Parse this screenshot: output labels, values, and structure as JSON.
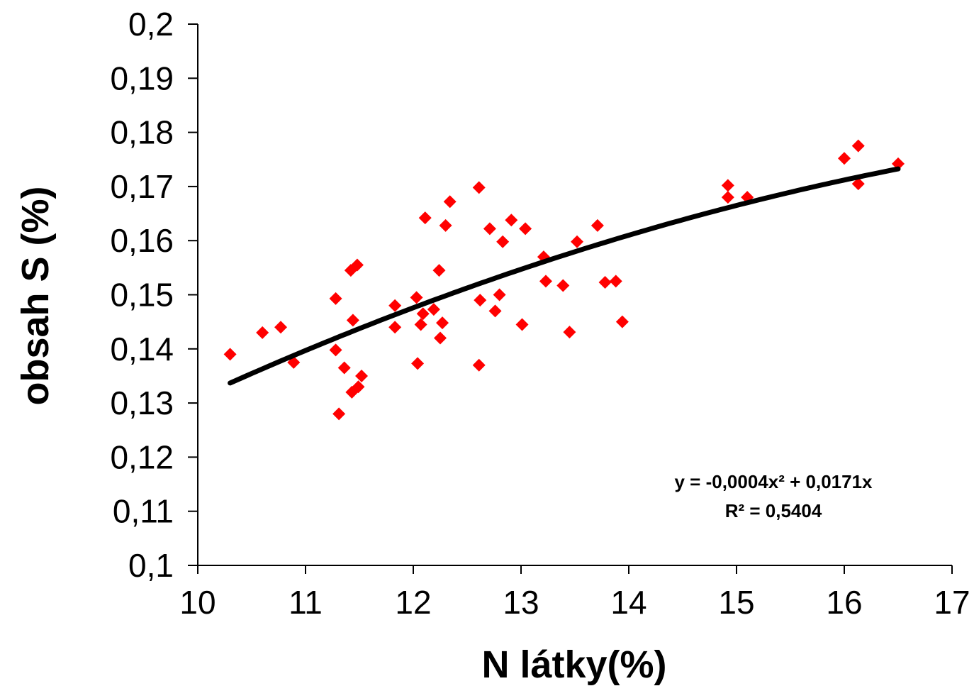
{
  "chart_data": {
    "type": "scatter",
    "xlabel": "N látky(%)",
    "ylabel": "obsah S (%)",
    "xlim": [
      10,
      17
    ],
    "ylim": [
      0.1,
      0.2
    ],
    "x_ticks": [
      "10",
      "11",
      "12",
      "13",
      "14",
      "15",
      "16",
      "17"
    ],
    "y_ticks": [
      "0,1",
      "0,11",
      "0,12",
      "0,13",
      "0,14",
      "0,15",
      "0,16",
      "0,17",
      "0,18",
      "0,19",
      "0,2"
    ],
    "grid": false,
    "legend": "none",
    "series": [
      {
        "marker": "diamond",
        "color": "#ff0000",
        "points": [
          [
            10.3,
            0.139
          ],
          [
            10.6,
            0.143
          ],
          [
            10.77,
            0.144
          ],
          [
            10.89,
            0.1375
          ],
          [
            11.28,
            0.1493
          ],
          [
            11.28,
            0.1398
          ],
          [
            11.31,
            0.128
          ],
          [
            11.36,
            0.1365
          ],
          [
            11.42,
            0.1545
          ],
          [
            11.43,
            0.132
          ],
          [
            11.44,
            0.1453
          ],
          [
            11.48,
            0.1555
          ],
          [
            11.49,
            0.133
          ],
          [
            11.52,
            0.135
          ],
          [
            11.83,
            0.148
          ],
          [
            11.83,
            0.144
          ],
          [
            12.03,
            0.1495
          ],
          [
            12.04,
            0.1373
          ],
          [
            12.07,
            0.1445
          ],
          [
            12.09,
            0.1465
          ],
          [
            12.11,
            0.1642
          ],
          [
            12.19,
            0.1473
          ],
          [
            12.24,
            0.1545
          ],
          [
            12.25,
            0.142
          ],
          [
            12.27,
            0.1448
          ],
          [
            12.3,
            0.1628
          ],
          [
            12.34,
            0.1672
          ],
          [
            12.61,
            0.1698
          ],
          [
            12.61,
            0.137
          ],
          [
            12.62,
            0.149
          ],
          [
            12.71,
            0.1622
          ],
          [
            12.76,
            0.147
          ],
          [
            12.8,
            0.15
          ],
          [
            12.83,
            0.1598
          ],
          [
            12.91,
            0.1638
          ],
          [
            13.01,
            0.1445
          ],
          [
            13.04,
            0.1622
          ],
          [
            13.21,
            0.157
          ],
          [
            13.23,
            0.1525
          ],
          [
            13.39,
            0.1517
          ],
          [
            13.45,
            0.1431
          ],
          [
            13.52,
            0.1598
          ],
          [
            13.71,
            0.1628
          ],
          [
            13.78,
            0.1523
          ],
          [
            13.88,
            0.1525
          ],
          [
            13.94,
            0.145
          ],
          [
            14.92,
            0.1702
          ],
          [
            14.92,
            0.168
          ],
          [
            15.1,
            0.168
          ],
          [
            16.0,
            0.1752
          ],
          [
            16.13,
            0.1775
          ],
          [
            16.13,
            0.1705
          ],
          [
            16.5,
            0.1742
          ]
        ]
      }
    ],
    "trendline": {
      "type": "polynomial",
      "color": "#000000",
      "a": -0.0004,
      "b": 0.0171,
      "c": 0.0,
      "x_range": [
        10.3,
        16.5
      ],
      "equation_label": "y = -0,0004x² + 0,0171x",
      "r2_label": "R² = 0,5404"
    }
  }
}
